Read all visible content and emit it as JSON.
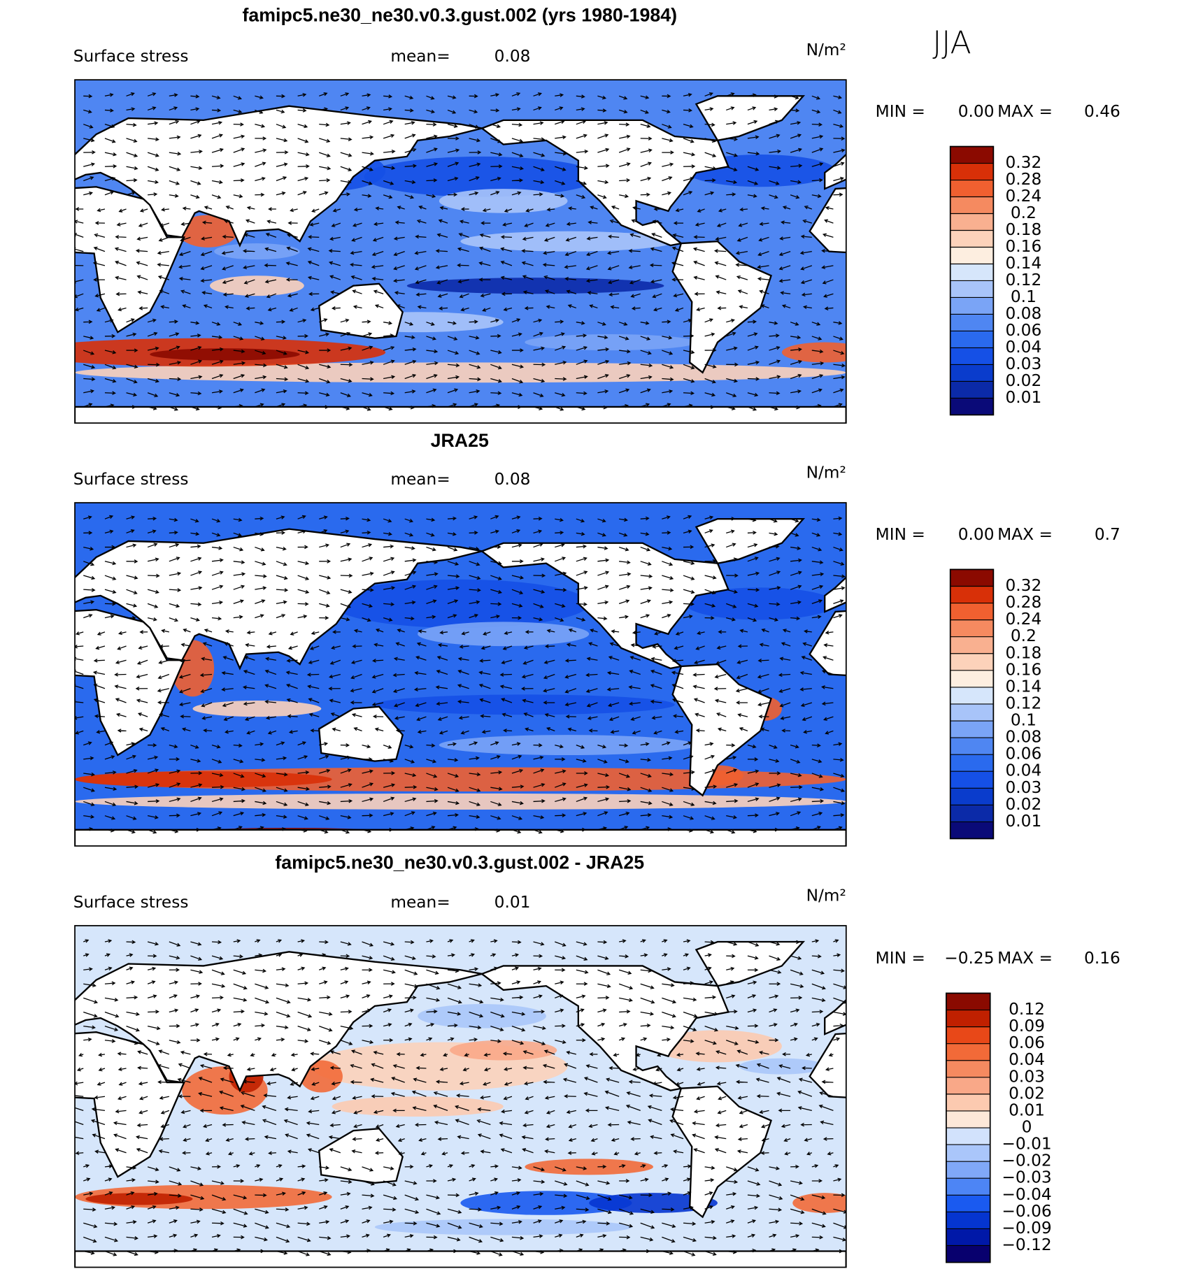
{
  "season": "JJA",
  "panels": [
    {
      "title": "famipc5.ne30_ne30.v0.3.gust.002 (yrs 1980-1984)",
      "variable": "Surface stress",
      "mean_label": "mean=",
      "mean": 0.08,
      "units": "N/m²",
      "min_label": "MIN =",
      "min": {
        "value": 0,
        "label": "0.00"
      },
      "max_label": "MAX =",
      "max": 0.46,
      "colorbar": {
        "levels": [
          0.01,
          0.02,
          0.03,
          0.04,
          0.06,
          0.08,
          0.1,
          0.12,
          0.14,
          0.16,
          0.18,
          0.2,
          0.24,
          0.28,
          0.32
        ],
        "colors": [
          "#0a0a78",
          "#0b2aa8",
          "#0a3ccc",
          "#1550e6",
          "#2a6aee",
          "#4f86f2",
          "#7aa4f6",
          "#a8c4f9",
          "#d6e6fb",
          "#fdeee0",
          "#fcd2ba",
          "#f9b090",
          "#f58a60",
          "#f06030",
          "#d83008",
          "#8b0a00"
        ]
      }
    },
    {
      "title": "JRA25",
      "variable": "Surface stress",
      "mean_label": "mean=",
      "mean": 0.08,
      "units": "N/m²",
      "min_label": "MIN =",
      "min": {
        "value": 0,
        "label": "0.00"
      },
      "max_label": "MAX =",
      "max": 0.7,
      "colorbar": {
        "levels": [
          0.01,
          0.02,
          0.03,
          0.04,
          0.06,
          0.08,
          0.1,
          0.12,
          0.14,
          0.16,
          0.18,
          0.2,
          0.24,
          0.28,
          0.32
        ],
        "colors": [
          "#0a0a78",
          "#0b2aa8",
          "#0a3ccc",
          "#1550e6",
          "#2a6aee",
          "#4f86f2",
          "#7aa4f6",
          "#a8c4f9",
          "#d6e6fb",
          "#fdeee0",
          "#fcd2ba",
          "#f9b090",
          "#f58a60",
          "#f06030",
          "#d83008",
          "#8b0a00"
        ]
      }
    },
    {
      "title": "famipc5.ne30_ne30.v0.3.gust.002 - JRA25",
      "variable": "Surface stress",
      "mean_label": "mean=",
      "mean": 0.01,
      "units": "N/m²",
      "min_label": "MIN =",
      "min": {
        "value": -0.25,
        "label": "−0.25"
      },
      "max_label": "MAX =",
      "max": 0.16,
      "colorbar": {
        "levels": [
          {
            "value": -0.12,
            "label": "−0.12"
          },
          {
            "value": -0.09,
            "label": "−0.09"
          },
          {
            "value": -0.06,
            "label": "−0.06"
          },
          {
            "value": -0.04,
            "label": "−0.04"
          },
          {
            "value": -0.03,
            "label": "−0.03"
          },
          {
            "value": -0.02,
            "label": "−0.02"
          },
          {
            "value": -0.01,
            "label": "−0.01"
          },
          0,
          0.01,
          0.02,
          0.03,
          0.04,
          0.06,
          0.09,
          0.12
        ],
        "colors": [
          "#08006e",
          "#0018a8",
          "#0535d0",
          "#1a5af0",
          "#4d85f5",
          "#80a8f8",
          "#aac6fa",
          "#d2e2fc",
          "#fde8d8",
          "#fccab0",
          "#f9a888",
          "#f58a60",
          "#f26a38",
          "#e84818",
          "#c02000",
          "#8a0a00"
        ]
      }
    }
  ]
}
